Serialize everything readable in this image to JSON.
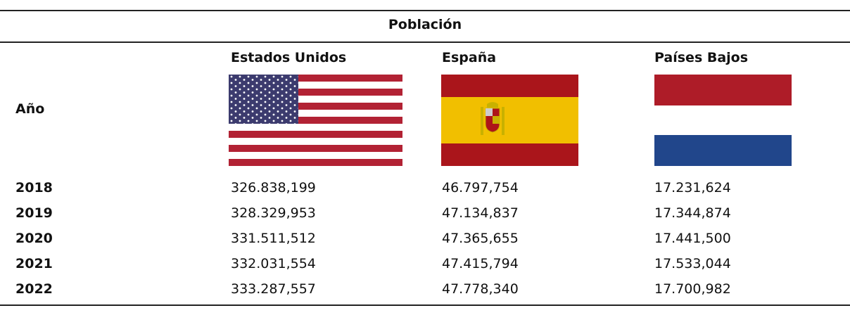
{
  "header": {
    "title": "Población"
  },
  "table": {
    "columns": [
      "Año",
      "Estados Unidos",
      "España",
      "Países Bajos"
    ],
    "rows": [
      [
        "2018",
        "326.838,199",
        "46.797,754",
        "17.231,624"
      ],
      [
        "2019",
        "328.329,953",
        "47.134,837",
        "17.344,874"
      ],
      [
        "2020",
        "331.511,512",
        "47.365,655",
        "17.441,500"
      ],
      [
        "2021",
        "332.031,554",
        "47.415,794",
        "17.533,044"
      ],
      [
        "2022",
        "333.287,557",
        "47.778,340",
        "17.700,982"
      ]
    ]
  }
}
